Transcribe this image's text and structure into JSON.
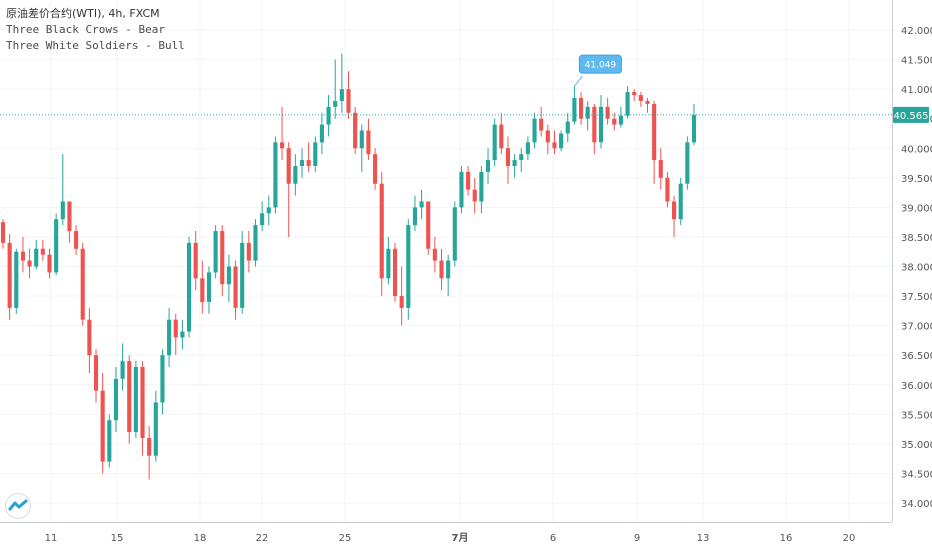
{
  "legend": {
    "title": "原油差价合约(WTI), 4h, FXCM",
    "study1": "Three Black Crows - Bear",
    "study2": "Three White Soldiers - Bull"
  },
  "chart_data": {
    "type": "candlestick",
    "ylim": [
      33.7,
      42.3
    ],
    "y_ticks": [
      "34.000",
      "34.500",
      "35.000",
      "35.500",
      "36.000",
      "36.500",
      "37.000",
      "37.500",
      "38.000",
      "38.500",
      "39.000",
      "39.500",
      "40.000",
      "40.500",
      "41.000",
      "41.500",
      "42.000"
    ],
    "x_ticks": [
      "11",
      "15",
      "18",
      "22",
      "25",
      "7月",
      "6",
      "9",
      "13",
      "16",
      "20"
    ],
    "price_line": 40.565,
    "price_label": "40.565",
    "callout_label": "41.049",
    "colors": {
      "up": "#26a69a",
      "down": "#ef5350",
      "price_line": "#26a69a",
      "callout": "#5fb8f0"
    },
    "candles": [
      [
        38.75,
        38.8,
        38.3,
        38.4
      ],
      [
        38.4,
        38.55,
        37.1,
        37.3
      ],
      [
        37.3,
        38.3,
        37.2,
        38.25
      ],
      [
        38.25,
        38.5,
        37.9,
        38.1
      ],
      [
        38.1,
        38.3,
        37.8,
        38.0
      ],
      [
        38.0,
        38.45,
        37.95,
        38.3
      ],
      [
        38.3,
        38.45,
        38.1,
        38.2
      ],
      [
        38.2,
        38.3,
        37.8,
        37.9
      ],
      [
        37.9,
        38.9,
        37.85,
        38.8
      ],
      [
        38.8,
        39.9,
        38.7,
        39.1
      ],
      [
        39.1,
        39.1,
        38.4,
        38.6
      ],
      [
        38.6,
        38.7,
        38.2,
        38.3
      ],
      [
        38.3,
        38.4,
        37.0,
        37.1
      ],
      [
        37.1,
        37.3,
        36.2,
        36.5
      ],
      [
        36.5,
        36.6,
        35.7,
        35.9
      ],
      [
        35.9,
        36.2,
        34.5,
        34.7
      ],
      [
        34.7,
        35.5,
        34.6,
        35.4
      ],
      [
        35.4,
        36.3,
        35.2,
        36.1
      ],
      [
        36.1,
        36.7,
        35.9,
        36.4
      ],
      [
        36.4,
        36.5,
        35.0,
        35.2
      ],
      [
        35.2,
        36.4,
        35.1,
        36.3
      ],
      [
        36.3,
        36.4,
        34.8,
        35.1
      ],
      [
        35.1,
        35.3,
        34.4,
        34.8
      ],
      [
        34.8,
        35.9,
        34.7,
        35.7
      ],
      [
        35.7,
        36.6,
        35.5,
        36.5
      ],
      [
        36.5,
        37.3,
        36.3,
        37.1
      ],
      [
        37.1,
        37.2,
        36.5,
        36.8
      ],
      [
        36.8,
        37.1,
        36.6,
        36.9
      ],
      [
        36.9,
        38.5,
        36.8,
        38.4
      ],
      [
        38.4,
        38.6,
        37.6,
        37.8
      ],
      [
        37.8,
        38.1,
        37.2,
        37.4
      ],
      [
        37.4,
        38.0,
        37.2,
        37.9
      ],
      [
        37.9,
        38.7,
        37.8,
        38.6
      ],
      [
        38.6,
        38.7,
        37.5,
        37.7
      ],
      [
        37.7,
        38.2,
        37.4,
        38.0
      ],
      [
        38.0,
        38.1,
        37.1,
        37.3
      ],
      [
        37.3,
        38.6,
        37.2,
        38.4
      ],
      [
        38.4,
        38.6,
        37.9,
        38.1
      ],
      [
        38.1,
        38.8,
        38.0,
        38.7
      ],
      [
        38.7,
        39.1,
        38.6,
        38.9
      ],
      [
        38.9,
        39.2,
        38.7,
        39.0
      ],
      [
        39.0,
        40.2,
        38.9,
        40.1
      ],
      [
        40.1,
        40.7,
        39.8,
        40.0
      ],
      [
        40.0,
        40.1,
        38.5,
        39.4
      ],
      [
        39.4,
        39.9,
        39.2,
        39.7
      ],
      [
        39.7,
        40.0,
        39.5,
        39.8
      ],
      [
        39.8,
        40.1,
        39.6,
        39.7
      ],
      [
        39.7,
        40.2,
        39.6,
        40.1
      ],
      [
        40.1,
        40.6,
        39.9,
        40.4
      ],
      [
        40.4,
        40.9,
        40.2,
        40.7
      ],
      [
        40.7,
        41.5,
        40.5,
        40.8
      ],
      [
        40.8,
        41.6,
        40.6,
        41.0
      ],
      [
        41.0,
        41.3,
        40.5,
        40.6
      ],
      [
        40.6,
        40.7,
        39.9,
        40.0
      ],
      [
        40.0,
        40.4,
        39.6,
        40.3
      ],
      [
        40.3,
        40.5,
        39.8,
        39.9
      ],
      [
        39.9,
        40.0,
        39.3,
        39.4
      ],
      [
        39.4,
        39.6,
        37.5,
        37.8
      ],
      [
        37.8,
        38.5,
        37.7,
        38.3
      ],
      [
        38.3,
        38.4,
        37.4,
        37.5
      ],
      [
        37.5,
        38.0,
        37.0,
        37.3
      ],
      [
        37.3,
        38.8,
        37.1,
        38.7
      ],
      [
        38.7,
        39.2,
        38.6,
        39.0
      ],
      [
        39.0,
        39.3,
        38.8,
        39.1
      ],
      [
        39.1,
        39.1,
        38.2,
        38.3
      ],
      [
        38.3,
        38.5,
        37.9,
        38.1
      ],
      [
        38.1,
        38.3,
        37.6,
        37.8
      ],
      [
        37.8,
        38.2,
        37.5,
        38.1
      ],
      [
        38.1,
        39.1,
        38.0,
        39.0
      ],
      [
        39.0,
        39.7,
        38.9,
        39.6
      ],
      [
        39.6,
        39.7,
        39.2,
        39.3
      ],
      [
        39.3,
        39.5,
        38.9,
        39.1
      ],
      [
        39.1,
        39.7,
        38.9,
        39.6
      ],
      [
        39.6,
        40.0,
        39.4,
        39.8
      ],
      [
        39.8,
        40.5,
        39.7,
        40.4
      ],
      [
        40.4,
        40.6,
        39.9,
        40.0
      ],
      [
        40.0,
        40.2,
        39.4,
        39.7
      ],
      [
        39.7,
        39.9,
        39.5,
        39.8
      ],
      [
        39.8,
        40.0,
        39.6,
        39.9
      ],
      [
        39.9,
        40.2,
        39.8,
        40.1
      ],
      [
        40.1,
        40.6,
        40.0,
        40.5
      ],
      [
        40.5,
        40.7,
        40.2,
        40.3
      ],
      [
        40.3,
        40.4,
        39.9,
        40.1
      ],
      [
        40.1,
        40.3,
        39.9,
        40.0
      ],
      [
        40.0,
        40.3,
        39.95,
        40.25
      ],
      [
        40.25,
        40.6,
        40.1,
        40.45
      ],
      [
        40.45,
        41.05,
        40.4,
        40.85
      ],
      [
        40.85,
        40.95,
        40.4,
        40.5
      ],
      [
        40.5,
        40.8,
        40.3,
        40.7
      ],
      [
        40.7,
        40.75,
        39.9,
        40.1
      ],
      [
        40.1,
        40.9,
        40.0,
        40.7
      ],
      [
        40.7,
        40.85,
        40.4,
        40.5
      ],
      [
        40.5,
        40.6,
        40.3,
        40.4
      ],
      [
        40.4,
        40.7,
        40.35,
        40.55
      ],
      [
        40.55,
        41.05,
        40.5,
        40.95
      ],
      [
        40.95,
        41.0,
        40.8,
        40.9
      ],
      [
        40.9,
        40.95,
        40.7,
        40.8
      ],
      [
        40.8,
        40.85,
        40.6,
        40.75
      ],
      [
        40.75,
        40.8,
        39.4,
        39.8
      ],
      [
        39.8,
        40.0,
        39.3,
        39.5
      ],
      [
        39.5,
        39.6,
        39.0,
        39.1
      ],
      [
        39.1,
        39.2,
        38.5,
        38.8
      ],
      [
        38.8,
        39.5,
        38.7,
        39.4
      ],
      [
        39.4,
        40.2,
        39.3,
        40.1
      ],
      [
        40.1,
        40.75,
        40.05,
        40.565
      ]
    ]
  }
}
